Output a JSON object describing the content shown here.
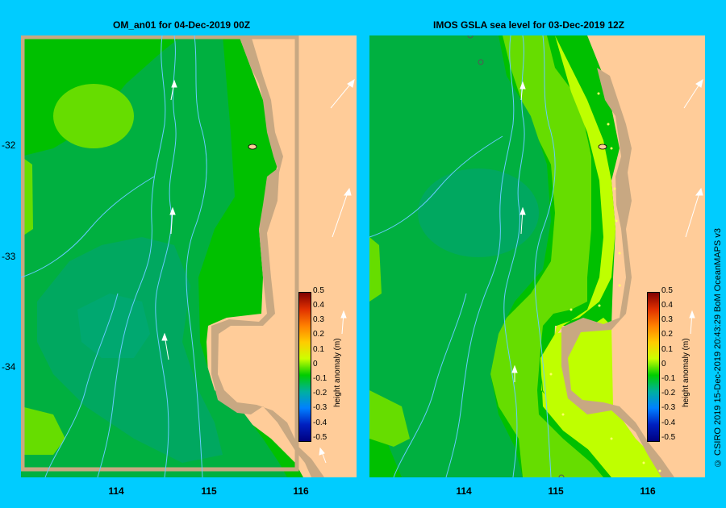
{
  "panels": [
    {
      "title": "OM_an01  for 04-Dec-2019 00Z",
      "colorbar_ticks": [
        "0.5",
        "0.4",
        "0.3",
        "0.2",
        "0.1",
        "0",
        "-0.1",
        "-0.2",
        "-0.3",
        "-0.4",
        "-0.5"
      ],
      "colorbar_label": "height anomaly (m)"
    },
    {
      "title": "IMOS  GSLA sea level   for 03-Dec-2019 12Z",
      "colorbar_ticks": [
        "0.5",
        "0.4",
        "0.3",
        "0.2",
        "0.1",
        "0",
        "-0.1",
        "-0.2",
        "-0.3",
        "-0.4",
        "-0.5"
      ],
      "colorbar_label": "height anomaly (m)"
    }
  ],
  "lat_labels": [
    "-32",
    "-33",
    "-34"
  ],
  "lon_labels": [
    "114",
    "115",
    "116"
  ],
  "credit": "© CSIRO 2019   15-Dec-2019 20:43:29 BoM OceanMAPS v3",
  "colors": {
    "background": "#00ccff",
    "land": "#ffcc99",
    "shelf": "#c8a882",
    "bathymetry": "#66ccff"
  }
}
